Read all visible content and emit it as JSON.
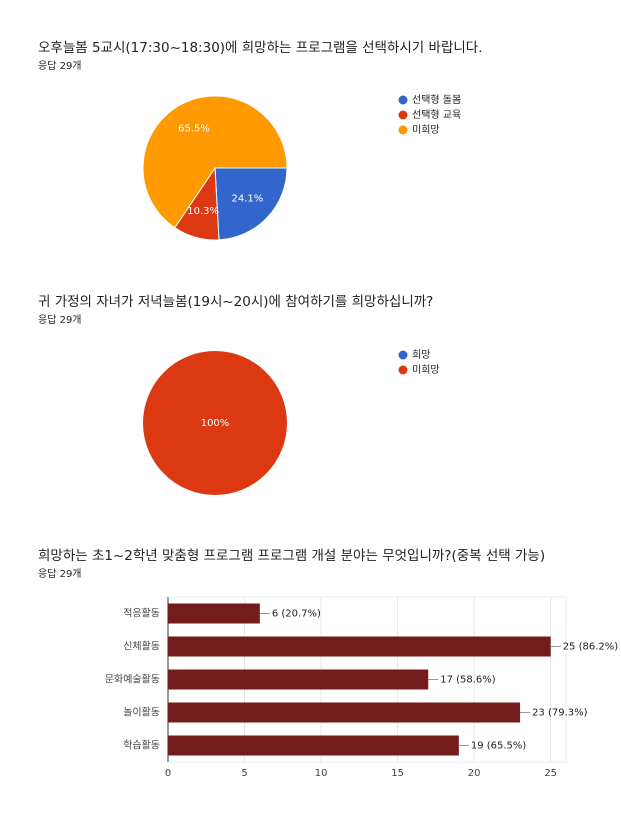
{
  "chart_data": [
    {
      "type": "pie",
      "title": "오후늘봄 5교시(17:30~18:30)에 희망하는 프로그램을 선택하시기 바랍니다.",
      "subtitle": "응답 29개",
      "categories": [
        "선택형 돌봄",
        "선택형 교육",
        "미희망"
      ],
      "values": [
        24.1,
        10.3,
        65.5
      ],
      "value_labels": [
        "24.1%",
        "10.3%",
        "65.5%"
      ],
      "colors": [
        "#3366cc",
        "#dc3912",
        "#ff9900"
      ]
    },
    {
      "type": "pie",
      "title": "귀 가정의 자녀가 저녁늘봄(19시~20시)에 참여하기를 희망하십니까?",
      "subtitle": "응답 29개",
      "categories": [
        "희망",
        "미희망"
      ],
      "values": [
        0,
        100
      ],
      "value_labels": [
        null,
        "100%"
      ],
      "colors": [
        "#3366cc",
        "#dc3912"
      ]
    },
    {
      "type": "hbar",
      "title": "희망하는 초1~2학년 맞춤형 프로그램 프로그램 개설 분야는 무엇입니까?(중복 선택 가능)",
      "subtitle": "응답 29개",
      "categories": [
        "적응활동",
        "신체활동",
        "문화예술활동",
        "놀이활동",
        "학습활동"
      ],
      "values": [
        6,
        25,
        17,
        23,
        19
      ],
      "value_labels": [
        "6 (20.7%)",
        "25 (86.2%)",
        "17 (58.6%)",
        "23 (79.3%)",
        "19 (65.5%)"
      ],
      "color": "#741b1b",
      "xlim": [
        0,
        26
      ],
      "xticks": [
        0,
        5,
        10,
        15,
        20,
        25
      ],
      "grid": true
    }
  ]
}
